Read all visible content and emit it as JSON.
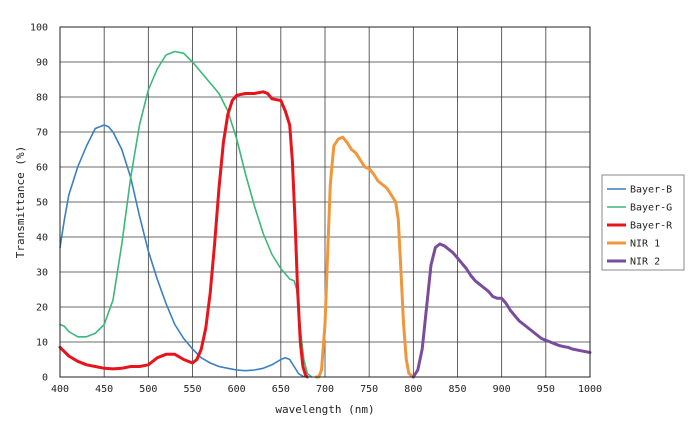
{
  "chart_data": {
    "type": "line",
    "xlabel": "wavelength (nm)",
    "ylabel": "Transmittance (%)",
    "xlim": [
      400,
      1000
    ],
    "ylim": [
      0,
      100
    ],
    "x_ticks": [
      400,
      450,
      500,
      550,
      600,
      650,
      700,
      750,
      800,
      850,
      900,
      950,
      1000
    ],
    "y_ticks": [
      0,
      10,
      20,
      30,
      40,
      50,
      60,
      70,
      80,
      90,
      100
    ],
    "grid": true,
    "legend_position": "right",
    "series": [
      {
        "name": "Bayer-B",
        "color": "#3a7fc1",
        "points": [
          [
            400,
            37
          ],
          [
            405,
            45
          ],
          [
            410,
            52
          ],
          [
            420,
            60
          ],
          [
            430,
            66
          ],
          [
            440,
            71
          ],
          [
            450,
            72
          ],
          [
            455,
            71.5
          ],
          [
            460,
            70
          ],
          [
            470,
            65
          ],
          [
            480,
            57
          ],
          [
            490,
            46
          ],
          [
            500,
            36
          ],
          [
            510,
            28
          ],
          [
            520,
            21
          ],
          [
            530,
            15
          ],
          [
            540,
            11
          ],
          [
            550,
            8
          ],
          [
            560,
            5.5
          ],
          [
            570,
            4
          ],
          [
            580,
            3
          ],
          [
            590,
            2.5
          ],
          [
            600,
            2
          ],
          [
            610,
            1.8
          ],
          [
            620,
            2
          ],
          [
            630,
            2.5
          ],
          [
            640,
            3.5
          ],
          [
            650,
            5
          ],
          [
            655,
            5.5
          ],
          [
            660,
            5
          ],
          [
            665,
            3
          ],
          [
            670,
            1
          ],
          [
            675,
            0.2
          ],
          [
            680,
            0
          ]
        ]
      },
      {
        "name": "Bayer-G",
        "color": "#3cb879",
        "points": [
          [
            400,
            15
          ],
          [
            405,
            14.5
          ],
          [
            410,
            13
          ],
          [
            420,
            11.5
          ],
          [
            430,
            11.5
          ],
          [
            440,
            12.5
          ],
          [
            450,
            15
          ],
          [
            460,
            22
          ],
          [
            470,
            38
          ],
          [
            480,
            57
          ],
          [
            490,
            72
          ],
          [
            500,
            82
          ],
          [
            510,
            88
          ],
          [
            520,
            92
          ],
          [
            530,
            93
          ],
          [
            540,
            92.5
          ],
          [
            550,
            90
          ],
          [
            560,
            87
          ],
          [
            570,
            84
          ],
          [
            580,
            81
          ],
          [
            590,
            76
          ],
          [
            600,
            68
          ],
          [
            610,
            58
          ],
          [
            620,
            49
          ],
          [
            630,
            41
          ],
          [
            640,
            35
          ],
          [
            650,
            31
          ],
          [
            660,
            28
          ],
          [
            665,
            27.5
          ],
          [
            668,
            25
          ],
          [
            672,
            14
          ],
          [
            676,
            5
          ],
          [
            680,
            1
          ],
          [
            685,
            0
          ]
        ]
      },
      {
        "name": "Bayer-R",
        "color": "#e8141c",
        "points": [
          [
            400,
            8.5
          ],
          [
            410,
            6
          ],
          [
            420,
            4.5
          ],
          [
            430,
            3.5
          ],
          [
            440,
            3
          ],
          [
            450,
            2.5
          ],
          [
            460,
            2.3
          ],
          [
            470,
            2.5
          ],
          [
            480,
            3
          ],
          [
            490,
            3
          ],
          [
            500,
            3.5
          ],
          [
            505,
            4.5
          ],
          [
            510,
            5.5
          ],
          [
            520,
            6.5
          ],
          [
            530,
            6.5
          ],
          [
            540,
            5
          ],
          [
            550,
            4
          ],
          [
            555,
            5
          ],
          [
            560,
            8
          ],
          [
            565,
            14
          ],
          [
            570,
            24
          ],
          [
            575,
            38
          ],
          [
            580,
            54
          ],
          [
            585,
            67
          ],
          [
            590,
            75
          ],
          [
            595,
            79
          ],
          [
            600,
            80.5
          ],
          [
            610,
            81
          ],
          [
            620,
            81
          ],
          [
            630,
            81.5
          ],
          [
            635,
            81
          ],
          [
            640,
            79.5
          ],
          [
            650,
            79
          ],
          [
            655,
            76
          ],
          [
            660,
            72
          ],
          [
            663,
            62
          ],
          [
            666,
            45
          ],
          [
            669,
            25
          ],
          [
            672,
            10
          ],
          [
            675,
            3
          ],
          [
            678,
            0.5
          ],
          [
            680,
            0
          ]
        ]
      },
      {
        "name": "NIR 1",
        "color": "#f0973b",
        "points": [
          [
            690,
            0
          ],
          [
            693,
            0
          ],
          [
            696,
            2
          ],
          [
            700,
            15
          ],
          [
            703,
            35
          ],
          [
            706,
            55
          ],
          [
            710,
            66
          ],
          [
            715,
            68
          ],
          [
            720,
            68.5
          ],
          [
            725,
            67
          ],
          [
            730,
            65
          ],
          [
            735,
            64
          ],
          [
            740,
            62
          ],
          [
            745,
            60
          ],
          [
            750,
            59.5
          ],
          [
            755,
            58
          ],
          [
            760,
            56
          ],
          [
            765,
            55
          ],
          [
            770,
            54
          ],
          [
            775,
            52
          ],
          [
            780,
            50
          ],
          [
            783,
            45
          ],
          [
            786,
            30
          ],
          [
            789,
            15
          ],
          [
            792,
            5
          ],
          [
            795,
            1
          ],
          [
            800,
            0
          ]
        ]
      },
      {
        "name": "NIR 2",
        "color": "#7a4c9e",
        "points": [
          [
            800,
            0
          ],
          [
            805,
            2
          ],
          [
            810,
            8
          ],
          [
            815,
            20
          ],
          [
            820,
            32
          ],
          [
            825,
            37
          ],
          [
            830,
            38
          ],
          [
            835,
            37.5
          ],
          [
            840,
            36.5
          ],
          [
            845,
            35.5
          ],
          [
            850,
            34
          ],
          [
            855,
            32.5
          ],
          [
            860,
            31
          ],
          [
            865,
            29
          ],
          [
            870,
            27.5
          ],
          [
            875,
            26.5
          ],
          [
            880,
            25.5
          ],
          [
            885,
            24.5
          ],
          [
            890,
            23
          ],
          [
            895,
            22.5
          ],
          [
            900,
            22.5
          ],
          [
            905,
            21
          ],
          [
            910,
            19
          ],
          [
            915,
            17.5
          ],
          [
            920,
            16
          ],
          [
            925,
            15
          ],
          [
            930,
            14
          ],
          [
            935,
            13
          ],
          [
            940,
            12
          ],
          [
            945,
            11
          ],
          [
            950,
            10.5
          ],
          [
            955,
            10
          ],
          [
            960,
            9.5
          ],
          [
            965,
            9
          ],
          [
            970,
            8.7
          ],
          [
            975,
            8.5
          ],
          [
            980,
            8
          ],
          [
            990,
            7.5
          ],
          [
            1000,
            7
          ]
        ]
      }
    ]
  }
}
